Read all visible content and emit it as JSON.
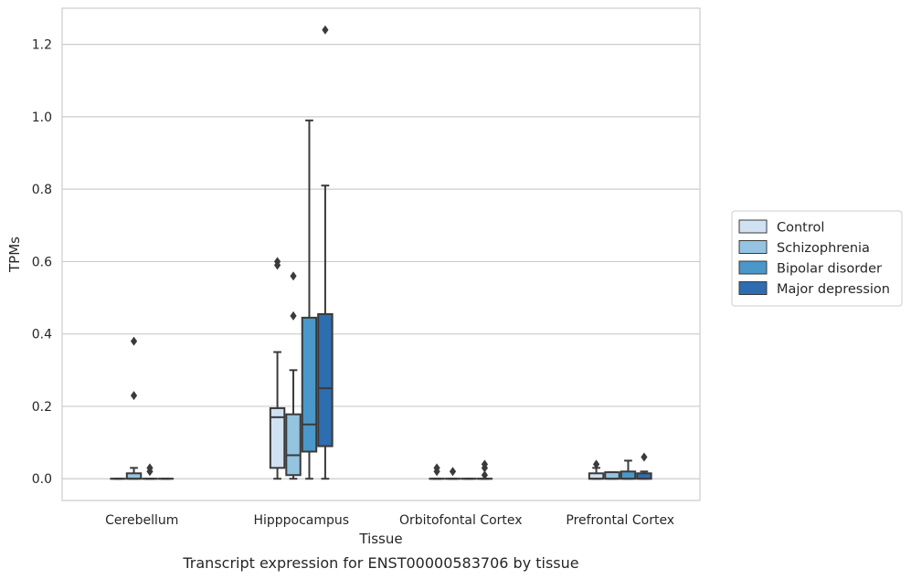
{
  "chart_data": {
    "type": "box",
    "title": "",
    "caption": "Transcript expression for ENST00000583706 by tissue",
    "xlabel": "Tissue",
    "ylabel": "TPMs",
    "ylim": [
      -0.06,
      1.3
    ],
    "yticks": [
      0.0,
      0.2,
      0.4,
      0.6,
      0.8,
      1.0,
      1.2
    ],
    "ytick_labels": [
      "0.0",
      "0.2",
      "0.4",
      "0.6",
      "0.8",
      "1.0",
      "1.2"
    ],
    "grid": "horizontal",
    "legend_position": "right",
    "categories": [
      "Cerebellum",
      "Hipppocampus",
      "Orbitofontal Cortex",
      "Prefrontal Cortex"
    ],
    "series": [
      {
        "name": "Control",
        "color": "#d0e1f2",
        "boxes": [
          {
            "whisker_low": 0.0,
            "q1": 0.0,
            "median": 0.0,
            "q3": 0.0,
            "whisker_high": 0.0,
            "outliers": []
          },
          {
            "whisker_low": 0.0,
            "q1": 0.03,
            "median": 0.17,
            "q3": 0.195,
            "whisker_high": 0.35,
            "outliers": [
              0.59,
              0.6
            ]
          },
          {
            "whisker_low": 0.0,
            "q1": 0.0,
            "median": 0.0,
            "q3": 0.0,
            "whisker_high": 0.0,
            "outliers": [
              0.02,
              0.03
            ]
          },
          {
            "whisker_low": 0.0,
            "q1": 0.0,
            "median": 0.0,
            "q3": 0.015,
            "whisker_high": 0.03,
            "outliers": [
              0.04
            ]
          }
        ]
      },
      {
        "name": "Schizophrenia",
        "color": "#94c4df",
        "boxes": [
          {
            "whisker_low": 0.0,
            "q1": 0.0,
            "median": 0.0,
            "q3": 0.015,
            "whisker_high": 0.03,
            "outliers": [
              0.23,
              0.38
            ]
          },
          {
            "whisker_low": 0.0,
            "q1": 0.01,
            "median": 0.065,
            "q3": 0.178,
            "whisker_high": 0.3,
            "outliers": [
              0.45,
              0.56
            ]
          },
          {
            "whisker_low": 0.0,
            "q1": 0.0,
            "median": 0.0,
            "q3": 0.0,
            "whisker_high": 0.0,
            "outliers": [
              0.02
            ]
          },
          {
            "whisker_low": 0.0,
            "q1": 0.0,
            "median": 0.0,
            "q3": 0.018,
            "whisker_high": 0.018,
            "outliers": []
          }
        ]
      },
      {
        "name": "Bipolar disorder",
        "color": "#4a98c9",
        "boxes": [
          {
            "whisker_low": 0.0,
            "q1": 0.0,
            "median": 0.0,
            "q3": 0.0,
            "whisker_high": 0.0,
            "outliers": [
              0.02,
              0.03
            ]
          },
          {
            "whisker_low": 0.0,
            "q1": 0.075,
            "median": 0.15,
            "q3": 0.445,
            "whisker_high": 0.99,
            "outliers": []
          },
          {
            "whisker_low": 0.0,
            "q1": 0.0,
            "median": 0.0,
            "q3": 0.0,
            "whisker_high": 0.0,
            "outliers": []
          },
          {
            "whisker_low": 0.0,
            "q1": 0.0,
            "median": 0.0,
            "q3": 0.02,
            "whisker_high": 0.05,
            "outliers": []
          }
        ]
      },
      {
        "name": "Major depression",
        "color": "#2e6daf",
        "boxes": [
          {
            "whisker_low": 0.0,
            "q1": 0.0,
            "median": 0.0,
            "q3": 0.0,
            "whisker_high": 0.0,
            "outliers": []
          },
          {
            "whisker_low": 0.0,
            "q1": 0.09,
            "median": 0.25,
            "q3": 0.455,
            "whisker_high": 0.81,
            "outliers": [
              1.24
            ]
          },
          {
            "whisker_low": 0.0,
            "q1": 0.0,
            "median": 0.0,
            "q3": 0.0,
            "whisker_high": 0.0,
            "outliers": [
              0.01,
              0.03,
              0.04
            ]
          },
          {
            "whisker_low": 0.0,
            "q1": 0.0,
            "median": 0.0,
            "q3": 0.015,
            "whisker_high": 0.02,
            "outliers": [
              0.06
            ]
          }
        ]
      }
    ]
  }
}
